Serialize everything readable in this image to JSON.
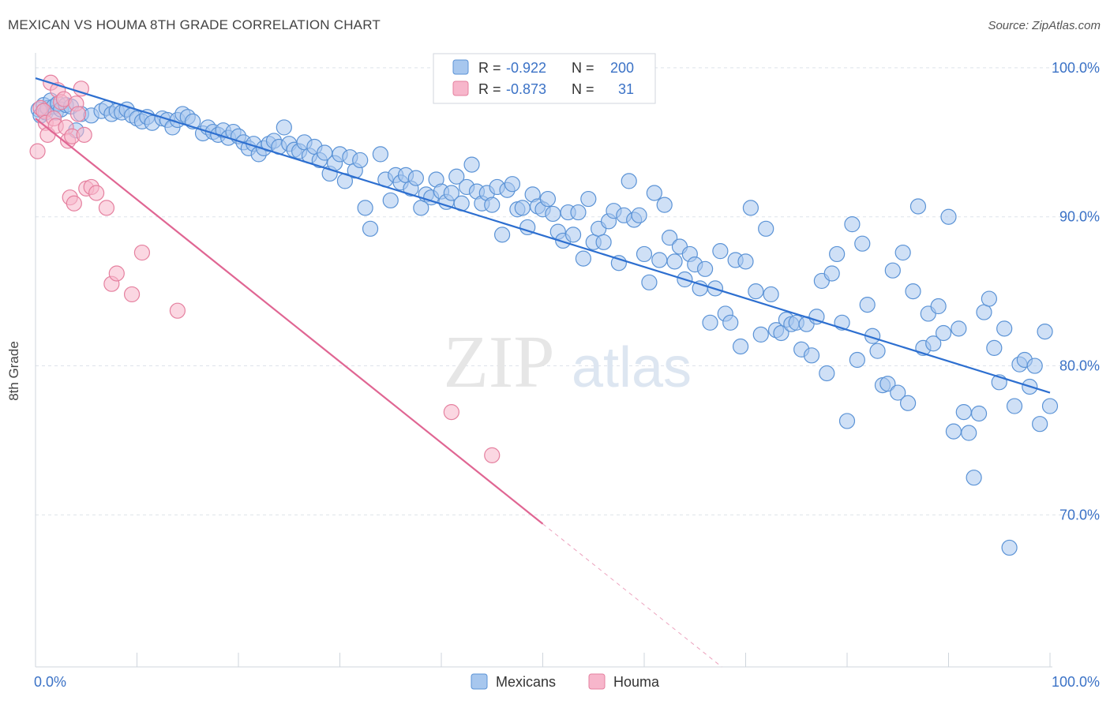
{
  "header": {
    "title": "MEXICAN VS HOUMA 8TH GRADE CORRELATION CHART",
    "source": "Source: ZipAtlas.com"
  },
  "watermark": {
    "zip": "ZIP",
    "atlas": "atlas"
  },
  "legend_box": {
    "rows": [
      {
        "r_label": "R =",
        "r_value": "-0.922",
        "n_label": "N =",
        "n_value": "200"
      },
      {
        "r_label": "R =",
        "r_value": "-0.873",
        "n_label": "N =",
        "n_value": "31"
      }
    ]
  },
  "bottom_legend": [
    "Mexicans",
    "Houma"
  ],
  "colors": {
    "mexicans_fill": "#a7c7ee",
    "mexicans_stroke": "#5b93d6",
    "mexicans_line": "#2d6fd0",
    "houma_fill": "#f7b6cb",
    "houma_stroke": "#e5809f",
    "houma_line": "#e06693",
    "value_text": "#3b72c6",
    "grid": "#dde3ea"
  },
  "chart_data": {
    "type": "scatter",
    "xlabel": "",
    "ylabel": "8th Grade",
    "x_tick_labels": [
      "0.0%",
      "100.0%"
    ],
    "y_tick_labels": [
      "100.0%",
      "90.0%",
      "80.0%",
      "70.0%"
    ],
    "y_ticks": [
      100,
      90,
      80,
      70
    ],
    "xlim": [
      0,
      100
    ],
    "ylim": [
      59.8,
      101.0
    ],
    "grid": true,
    "legend_position": "bottom-center",
    "series": [
      {
        "name": "Mexicans",
        "R": -0.922,
        "N": 200,
        "trend": {
          "x": [
            0,
            100
          ],
          "y": [
            99.3,
            78.2
          ]
        },
        "points": [
          [
            0.3,
            97.2
          ],
          [
            0.5,
            96.8
          ],
          [
            0.8,
            97.5
          ],
          [
            1.0,
            97.0
          ],
          [
            1.2,
            97.3
          ],
          [
            1.5,
            97.8
          ],
          [
            1.8,
            97.4
          ],
          [
            2.0,
            97.0
          ],
          [
            2.2,
            97.6
          ],
          [
            2.5,
            97.2
          ],
          [
            3.0,
            97.5
          ],
          [
            3.5,
            97.4
          ],
          [
            4.0,
            95.8
          ],
          [
            4.5,
            96.9
          ],
          [
            5.5,
            96.8
          ],
          [
            6.5,
            97.1
          ],
          [
            7.0,
            97.3
          ],
          [
            7.5,
            96.9
          ],
          [
            8.0,
            97.1
          ],
          [
            8.5,
            97.0
          ],
          [
            9.0,
            97.2
          ],
          [
            9.5,
            96.8
          ],
          [
            10.0,
            96.6
          ],
          [
            10.5,
            96.4
          ],
          [
            11.0,
            96.7
          ],
          [
            11.5,
            96.3
          ],
          [
            12.5,
            96.6
          ],
          [
            13.0,
            96.5
          ],
          [
            13.5,
            96.0
          ],
          [
            14.0,
            96.5
          ],
          [
            14.5,
            96.9
          ],
          [
            15.0,
            96.7
          ],
          [
            15.5,
            96.4
          ],
          [
            16.5,
            95.6
          ],
          [
            17.0,
            96.0
          ],
          [
            17.5,
            95.7
          ],
          [
            18.0,
            95.5
          ],
          [
            18.5,
            95.8
          ],
          [
            19.0,
            95.3
          ],
          [
            19.5,
            95.7
          ],
          [
            20.0,
            95.4
          ],
          [
            20.5,
            95.0
          ],
          [
            21.0,
            94.6
          ],
          [
            21.5,
            94.9
          ],
          [
            22.0,
            94.2
          ],
          [
            22.5,
            94.6
          ],
          [
            23.0,
            94.9
          ],
          [
            23.5,
            95.1
          ],
          [
            24.0,
            94.7
          ],
          [
            24.5,
            96.0
          ],
          [
            25.0,
            94.9
          ],
          [
            25.5,
            94.5
          ],
          [
            26.0,
            94.4
          ],
          [
            26.5,
            95.0
          ],
          [
            27.0,
            94.1
          ],
          [
            27.5,
            94.7
          ],
          [
            28.0,
            93.8
          ],
          [
            28.5,
            94.3
          ],
          [
            29.0,
            92.9
          ],
          [
            29.5,
            93.6
          ],
          [
            30.0,
            94.2
          ],
          [
            30.5,
            92.4
          ],
          [
            31.0,
            94.0
          ],
          [
            31.5,
            93.1
          ],
          [
            32.0,
            93.8
          ],
          [
            32.5,
            90.6
          ],
          [
            33.0,
            89.2
          ],
          [
            34.0,
            94.2
          ],
          [
            34.5,
            92.5
          ],
          [
            35.0,
            91.1
          ],
          [
            35.5,
            92.8
          ],
          [
            36.0,
            92.3
          ],
          [
            36.5,
            92.8
          ],
          [
            37.0,
            91.9
          ],
          [
            37.5,
            92.6
          ],
          [
            38.0,
            90.6
          ],
          [
            38.5,
            91.5
          ],
          [
            39.0,
            91.3
          ],
          [
            39.5,
            92.5
          ],
          [
            40.0,
            91.7
          ],
          [
            40.5,
            91.0
          ],
          [
            41.0,
            91.6
          ],
          [
            41.5,
            92.7
          ],
          [
            42.0,
            90.9
          ],
          [
            42.5,
            92.0
          ],
          [
            43.0,
            93.5
          ],
          [
            43.5,
            91.7
          ],
          [
            44.0,
            90.9
          ],
          [
            44.5,
            91.6
          ],
          [
            45.0,
            90.8
          ],
          [
            45.5,
            92.0
          ],
          [
            46.0,
            88.8
          ],
          [
            46.5,
            91.8
          ],
          [
            47.0,
            92.2
          ],
          [
            47.5,
            90.5
          ],
          [
            48.0,
            90.6
          ],
          [
            48.5,
            89.3
          ],
          [
            49.0,
            91.5
          ],
          [
            49.5,
            90.7
          ],
          [
            50.0,
            90.5
          ],
          [
            50.5,
            91.2
          ],
          [
            51.0,
            90.2
          ],
          [
            51.5,
            89.0
          ],
          [
            52.0,
            88.4
          ],
          [
            52.5,
            90.3
          ],
          [
            53.0,
            88.8
          ],
          [
            53.5,
            90.3
          ],
          [
            54.0,
            87.2
          ],
          [
            54.5,
            91.2
          ],
          [
            55.0,
            88.3
          ],
          [
            55.5,
            89.2
          ],
          [
            56.0,
            88.3
          ],
          [
            56.5,
            89.7
          ],
          [
            57.0,
            90.4
          ],
          [
            57.5,
            86.9
          ],
          [
            58.0,
            90.1
          ],
          [
            58.5,
            92.4
          ],
          [
            59.0,
            89.8
          ],
          [
            59.5,
            90.1
          ],
          [
            60.0,
            87.5
          ],
          [
            60.5,
            85.6
          ],
          [
            61.0,
            91.6
          ],
          [
            61.5,
            87.1
          ],
          [
            62.0,
            90.8
          ],
          [
            62.5,
            88.6
          ],
          [
            63.0,
            87.0
          ],
          [
            63.5,
            88.0
          ],
          [
            64.0,
            85.8
          ],
          [
            64.5,
            87.5
          ],
          [
            65.0,
            86.8
          ],
          [
            65.5,
            85.2
          ],
          [
            66.0,
            86.5
          ],
          [
            66.5,
            82.9
          ],
          [
            67.0,
            85.2
          ],
          [
            67.5,
            87.7
          ],
          [
            68.0,
            83.5
          ],
          [
            68.5,
            82.9
          ],
          [
            69.0,
            87.1
          ],
          [
            69.5,
            81.3
          ],
          [
            70.0,
            87.0
          ],
          [
            70.5,
            90.6
          ],
          [
            71.0,
            85.0
          ],
          [
            71.5,
            82.1
          ],
          [
            72.0,
            89.2
          ],
          [
            72.5,
            84.8
          ],
          [
            73.0,
            82.4
          ],
          [
            73.5,
            82.2
          ],
          [
            74.0,
            83.1
          ],
          [
            74.5,
            82.8
          ],
          [
            75.0,
            82.9
          ],
          [
            75.5,
            81.1
          ],
          [
            76.0,
            82.8
          ],
          [
            76.5,
            80.7
          ],
          [
            77.0,
            83.3
          ],
          [
            77.5,
            85.7
          ],
          [
            78.0,
            79.5
          ],
          [
            78.5,
            86.2
          ],
          [
            79.0,
            87.5
          ],
          [
            79.5,
            82.9
          ],
          [
            80.0,
            76.3
          ],
          [
            80.5,
            89.5
          ],
          [
            81.0,
            80.4
          ],
          [
            81.5,
            88.2
          ],
          [
            82.0,
            84.1
          ],
          [
            82.5,
            82.0
          ],
          [
            83.0,
            81.0
          ],
          [
            83.5,
            78.7
          ],
          [
            84.0,
            78.8
          ],
          [
            84.5,
            86.4
          ],
          [
            85.0,
            78.2
          ],
          [
            85.5,
            87.6
          ],
          [
            86.0,
            77.5
          ],
          [
            86.5,
            85.0
          ],
          [
            87.0,
            90.7
          ],
          [
            87.5,
            81.2
          ],
          [
            88.0,
            83.5
          ],
          [
            88.5,
            81.5
          ],
          [
            89.0,
            84.0
          ],
          [
            89.5,
            82.2
          ],
          [
            90.0,
            90.0
          ],
          [
            90.5,
            75.6
          ],
          [
            91.0,
            82.5
          ],
          [
            91.5,
            76.9
          ],
          [
            92.0,
            75.5
          ],
          [
            92.5,
            72.5
          ],
          [
            93.0,
            76.8
          ],
          [
            93.5,
            83.6
          ],
          [
            94.0,
            84.5
          ],
          [
            94.5,
            81.2
          ],
          [
            95.0,
            78.9
          ],
          [
            95.5,
            82.5
          ],
          [
            96.0,
            67.8
          ],
          [
            96.5,
            77.3
          ],
          [
            97.0,
            80.1
          ],
          [
            97.5,
            80.4
          ],
          [
            98.0,
            78.6
          ],
          [
            98.5,
            80.0
          ],
          [
            99.0,
            76.1
          ],
          [
            99.5,
            82.3
          ],
          [
            100.0,
            77.3
          ]
        ]
      },
      {
        "name": "Houma",
        "R": -0.873,
        "N": 31,
        "trend": {
          "x": [
            0,
            50
          ],
          "y": [
            96.6,
            69.4
          ]
        },
        "points": [
          [
            0.2,
            94.4
          ],
          [
            0.5,
            97.3
          ],
          [
            0.8,
            97.1
          ],
          [
            1.0,
            96.3
          ],
          [
            1.2,
            95.5
          ],
          [
            1.5,
            99.0
          ],
          [
            1.8,
            96.6
          ],
          [
            2.0,
            96.1
          ],
          [
            2.2,
            98.5
          ],
          [
            2.5,
            97.7
          ],
          [
            2.8,
            97.9
          ],
          [
            3.0,
            96.0
          ],
          [
            3.2,
            95.1
          ],
          [
            3.4,
            91.3
          ],
          [
            3.6,
            95.4
          ],
          [
            3.8,
            90.9
          ],
          [
            4.0,
            97.6
          ],
          [
            4.2,
            96.9
          ],
          [
            4.5,
            98.6
          ],
          [
            4.8,
            95.5
          ],
          [
            5.0,
            91.9
          ],
          [
            5.5,
            92.0
          ],
          [
            6.0,
            91.6
          ],
          [
            7.0,
            90.6
          ],
          [
            7.5,
            85.5
          ],
          [
            8.0,
            86.2
          ],
          [
            9.5,
            84.8
          ],
          [
            10.5,
            87.6
          ],
          [
            14.0,
            83.7
          ],
          [
            41.0,
            76.9
          ],
          [
            45.0,
            74.0
          ]
        ]
      }
    ]
  }
}
